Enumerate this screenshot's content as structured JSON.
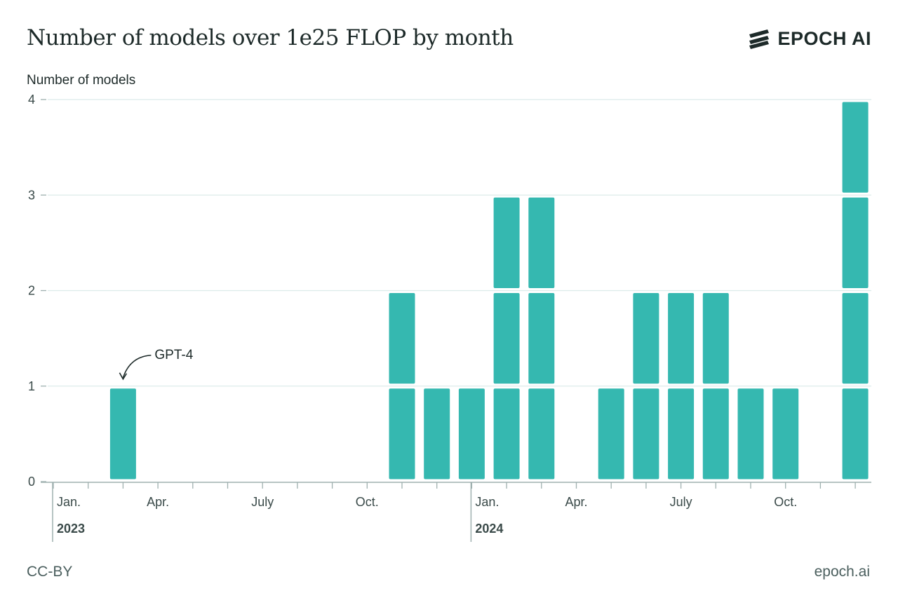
{
  "header": {
    "title": "Number of models over 1e25 FLOP by month",
    "brand": "EPOCH AI"
  },
  "footer": {
    "license": "CC-BY",
    "site": "epoch.ai"
  },
  "colors": {
    "bar": "#35b8b0",
    "grid": "#dcebea",
    "axis": "#9fb0af",
    "text": "#1d2a29"
  },
  "chart_data": {
    "type": "bar",
    "ylabel": "Number of models",
    "ylim": [
      0,
      4
    ],
    "yticks": [
      0,
      1,
      2,
      3,
      4
    ],
    "grid": true,
    "bar_style": "stacked unit blocks",
    "categories": [
      "2023-01",
      "2023-02",
      "2023-03",
      "2023-04",
      "2023-05",
      "2023-06",
      "2023-07",
      "2023-08",
      "2023-09",
      "2023-10",
      "2023-11",
      "2023-12",
      "2024-01",
      "2024-02",
      "2024-03",
      "2024-04",
      "2024-05",
      "2024-06",
      "2024-07",
      "2024-08",
      "2024-09",
      "2024-10",
      "2024-11",
      "2024-12"
    ],
    "values": [
      0,
      0,
      1,
      0,
      0,
      0,
      0,
      0,
      0,
      0,
      2,
      1,
      1,
      3,
      3,
      0,
      1,
      2,
      2,
      2,
      1,
      1,
      0,
      4
    ],
    "xtick_labels": [
      {
        "month": "2023-01",
        "label": "Jan."
      },
      {
        "month": "2023-04",
        "label": "Apr."
      },
      {
        "month": "2023-07",
        "label": "July"
      },
      {
        "month": "2023-10",
        "label": "Oct."
      },
      {
        "month": "2024-01",
        "label": "Jan."
      },
      {
        "month": "2024-04",
        "label": "Apr."
      },
      {
        "month": "2024-07",
        "label": "July"
      },
      {
        "month": "2024-10",
        "label": "Oct."
      }
    ],
    "years": [
      {
        "month": "2023-01",
        "label": "2023"
      },
      {
        "month": "2024-01",
        "label": "2024"
      }
    ],
    "annotations": [
      {
        "month": "2023-03",
        "text": "GPT-4"
      }
    ]
  }
}
